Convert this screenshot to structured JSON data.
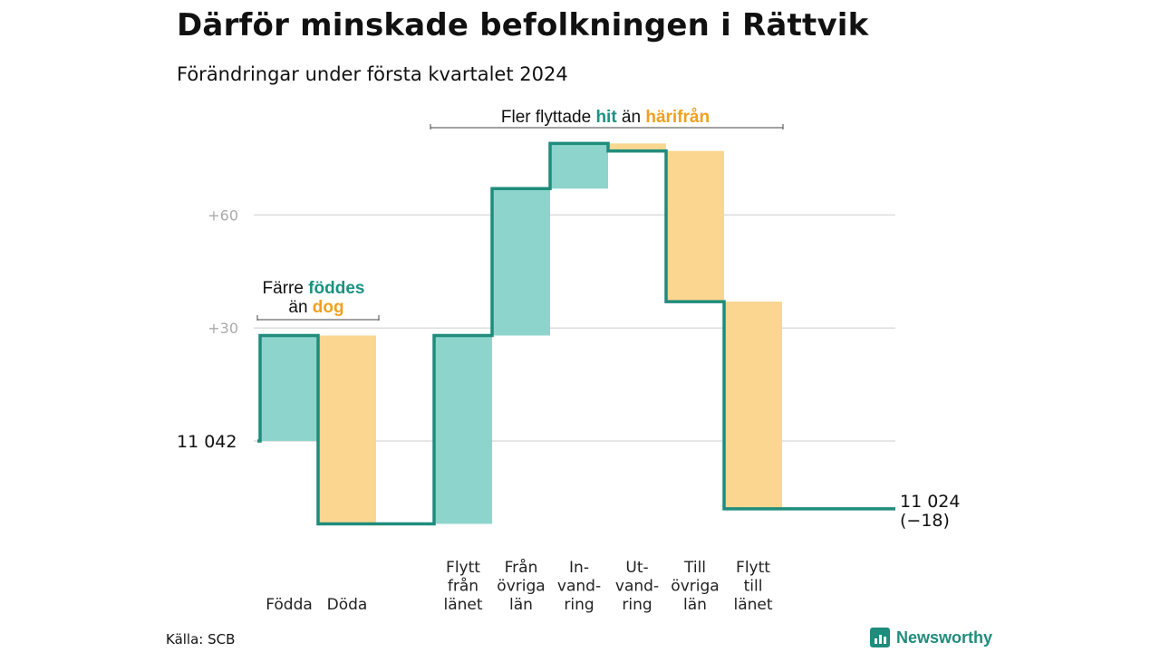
{
  "header": {
    "title": "Därför minskade befolkningen i Rättvik",
    "subtitle": "Förändringar under första kvartalet 2024"
  },
  "chart_data": {
    "type": "waterfall",
    "start": {
      "label": "11  042",
      "value": 11042
    },
    "end": {
      "label": "11 024",
      "change_label": "(−18)",
      "value": 11024
    },
    "categories": [
      {
        "lines": [
          "Födda"
        ],
        "change": 28
      },
      {
        "lines": [
          "Döda"
        ],
        "change": -50
      },
      {
        "lines": [
          "Flytt",
          "från",
          "länet"
        ],
        "change": 50
      },
      {
        "lines": [
          "Från",
          "övriga",
          "län"
        ],
        "change": 39
      },
      {
        "lines": [
          "In-",
          "vand-",
          "ring"
        ],
        "change": 12
      },
      {
        "lines": [
          "Ut-",
          "vand-",
          "ring"
        ],
        "change": -2
      },
      {
        "lines": [
          "Till",
          "övriga",
          "län"
        ],
        "change": -40
      },
      {
        "lines": [
          "Flytt",
          "till",
          "länet"
        ],
        "change": -55
      }
    ],
    "y_ticks": [
      {
        "value": 30,
        "label": "+30"
      },
      {
        "value": 60,
        "label": "+60"
      }
    ],
    "y_range": [
      -25,
      80
    ],
    "gridlines": true,
    "colors": {
      "positive": "#8dd5cc",
      "negative": "#fbd690",
      "line": "#1f8c7c",
      "grid": "#dddddd"
    },
    "annotations": {
      "births": {
        "line1_prefix": "Färre ",
        "line1_highlight": "föddes",
        "line2_prefix": "än ",
        "line2_highlight": "dog"
      },
      "migration": {
        "prefix": "Fler flyttade ",
        "highlight1": "hit",
        "middle": " än ",
        "highlight2": "härifrån"
      }
    }
  },
  "footer": {
    "source": "Källa: SCB",
    "logo": {
      "icon": "bar-chart-icon",
      "text": "Newsworthy"
    }
  }
}
